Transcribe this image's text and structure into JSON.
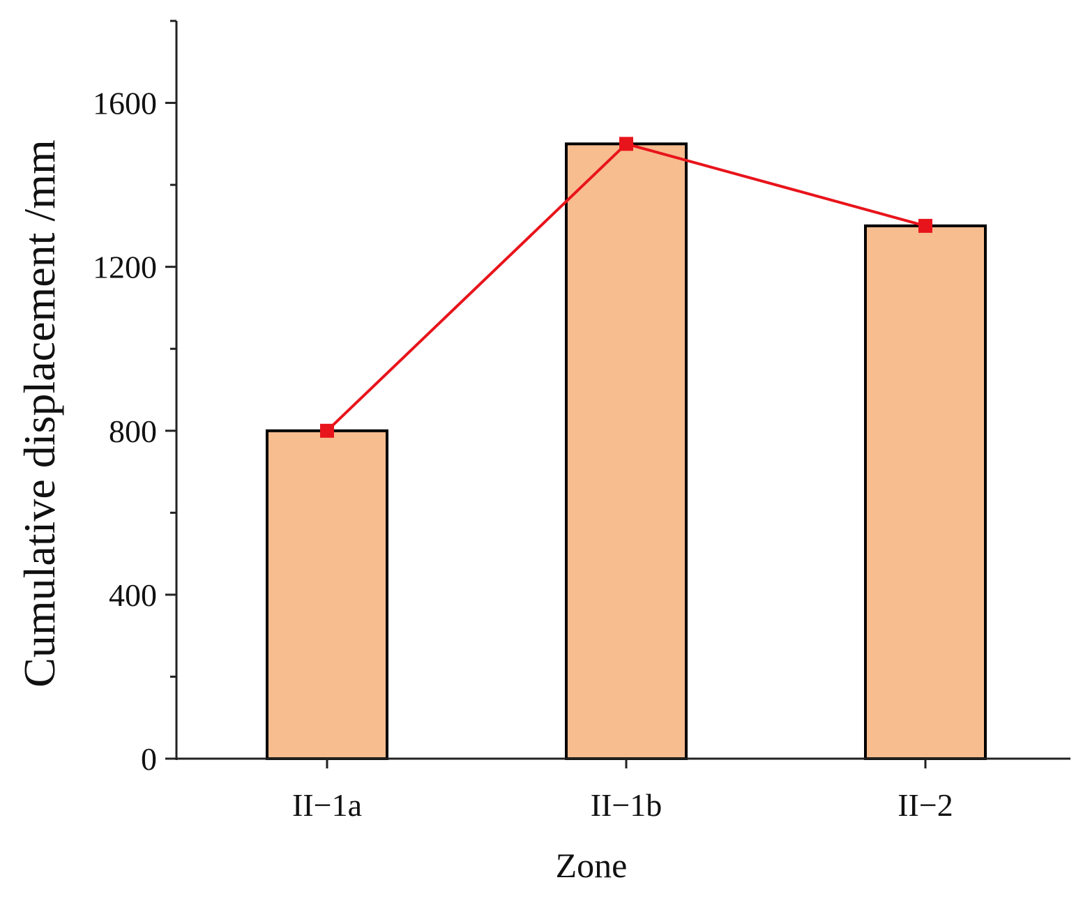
{
  "chart_data": {
    "type": "bar",
    "title": "",
    "xlabel": "Zone",
    "ylabel": "Cumulative displacement /mm",
    "categories": [
      "II−1a",
      "II−1b",
      "II−2"
    ],
    "series": [
      {
        "type": "bar",
        "values": [
          800,
          1500,
          1300
        ]
      },
      {
        "type": "line",
        "values": [
          800,
          1500,
          1300
        ]
      }
    ],
    "ylim": [
      0,
      1800
    ],
    "yticks": [
      0,
      400,
      800,
      1200,
      1600
    ],
    "yticks_minor": [
      200,
      600,
      1000,
      1400,
      1800
    ],
    "grid": false,
    "legend": "none",
    "colors": {
      "bar_fill": "#f7bd8f",
      "bar_edge": "#000000",
      "line": "#e8141b",
      "axis": "#222222"
    }
  }
}
